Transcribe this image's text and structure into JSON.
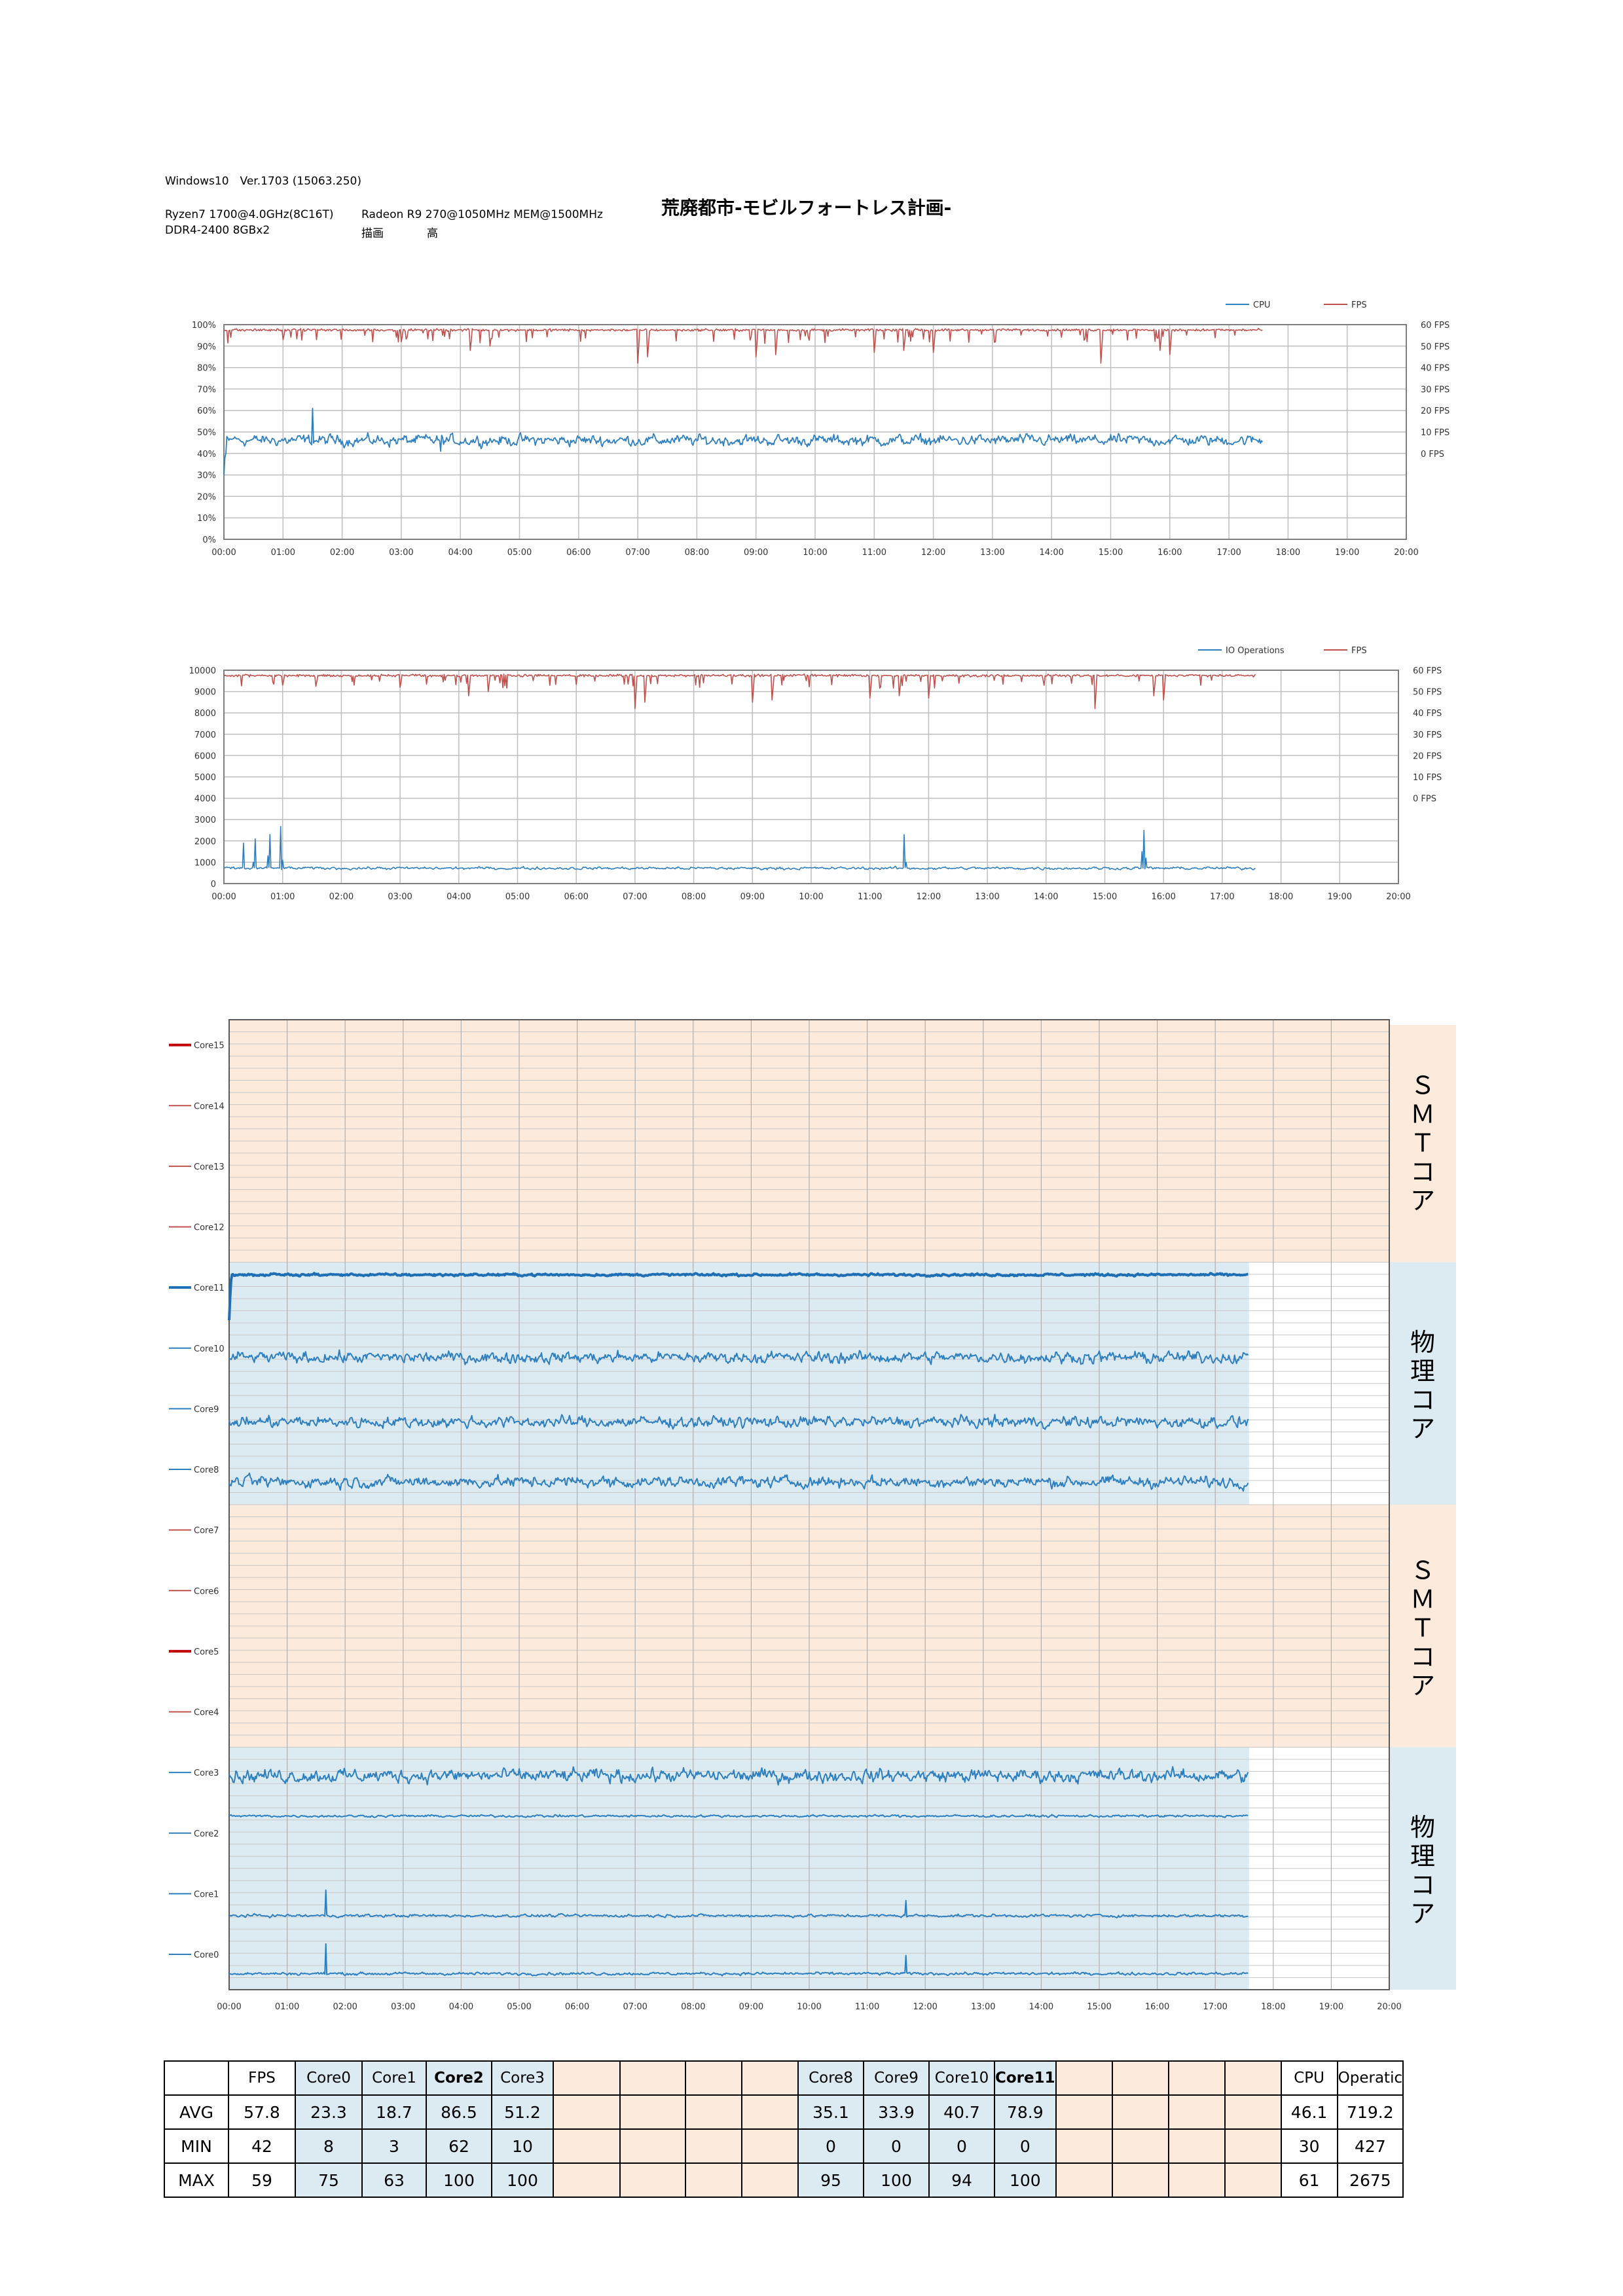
{
  "header": {
    "os": "Windows10　Ver.1703 (15063.250)",
    "cpu": "Ryzen7 1700@4.0GHz(8C16T)",
    "gpu": "Radeon R9 270@1050MHz MEM@1500MHz",
    "mem": "DDR4-2400 8GBx2",
    "quality_label": "描画",
    "quality_value": "高",
    "title": "荒廃都市-モビルフォートレス計画-"
  },
  "colors": {
    "blue": "#2e7fc0",
    "red": "#c0504d",
    "smt_band": "#fcebdd",
    "phys_band": "#dcebf2",
    "grid": "#bfbfbf"
  },
  "time_ticks": [
    "00:00",
    "01:00",
    "02:00",
    "03:00",
    "04:00",
    "05:00",
    "06:00",
    "07:00",
    "08:00",
    "09:00",
    "10:00",
    "11:00",
    "12:00",
    "13:00",
    "14:00",
    "15:00",
    "16:00",
    "17:00",
    "18:00",
    "19:00",
    "20:00"
  ],
  "chart_data": [
    {
      "type": "line",
      "x_range_minutes": [
        0,
        1200
      ],
      "x_ticks": [
        "00:00",
        "01:00",
        "02:00",
        "03:00",
        "04:00",
        "05:00",
        "06:00",
        "07:00",
        "08:00",
        "09:00",
        "10:00",
        "11:00",
        "12:00",
        "13:00",
        "14:00",
        "15:00",
        "16:00",
        "17:00",
        "18:00",
        "19:00",
        "20:00"
      ],
      "y_left_ticks": [
        "0%",
        "10%",
        "20%",
        "30%",
        "40%",
        "50%",
        "60%",
        "70%",
        "80%",
        "90%",
        "100%"
      ],
      "y_right_ticks": [
        "0 FPS",
        "10 FPS",
        "20 FPS",
        "30 FPS",
        "40 FPS",
        "50 FPS",
        "60 FPS"
      ],
      "ylim_left": [
        0,
        100
      ],
      "legend": "top-right",
      "series": [
        {
          "name": "CPU",
          "color": "#2e7fc0",
          "axis": "left",
          "avg": 46.1,
          "min": 30,
          "max": 61,
          "end_minute": 1055
        },
        {
          "name": "FPS",
          "color": "#c0504d",
          "axis": "right",
          "avg": 57.8,
          "min": 42,
          "max": 59,
          "end_minute": 1055
        }
      ]
    },
    {
      "type": "line",
      "x_range_minutes": [
        0,
        1200
      ],
      "x_ticks": [
        "00:00",
        "01:00",
        "02:00",
        "03:00",
        "04:00",
        "05:00",
        "06:00",
        "07:00",
        "08:00",
        "09:00",
        "10:00",
        "11:00",
        "12:00",
        "13:00",
        "14:00",
        "15:00",
        "16:00",
        "17:00",
        "18:00",
        "19:00",
        "20:00"
      ],
      "y_left_ticks": [
        "0",
        "1000",
        "2000",
        "3000",
        "4000",
        "5000",
        "6000",
        "7000",
        "8000",
        "9000",
        "10000"
      ],
      "y_right_ticks": [
        "0 FPS",
        "10 FPS",
        "20 FPS",
        "30 FPS",
        "40 FPS",
        "50 FPS",
        "60 FPS"
      ],
      "ylim_left": [
        0,
        10000
      ],
      "legend": "top-right",
      "series": [
        {
          "name": "IO Operations",
          "color": "#2e7fc0",
          "axis": "left",
          "avg": 719.2,
          "min": 427,
          "max": 2675,
          "end_minute": 1055
        },
        {
          "name": "FPS",
          "color": "#c0504d",
          "axis": "right",
          "avg": 57.8,
          "min": 42,
          "max": 59,
          "end_minute": 1055
        }
      ]
    },
    {
      "type": "line",
      "x_range_minutes": [
        0,
        1200
      ],
      "x_ticks": [
        "00:00",
        "01:00",
        "02:00",
        "03:00",
        "04:00",
        "05:00",
        "06:00",
        "07:00",
        "08:00",
        "09:00",
        "10:00",
        "11:00",
        "12:00",
        "13:00",
        "14:00",
        "15:00",
        "16:00",
        "17:00",
        "18:00",
        "19:00",
        "20:00"
      ],
      "bands": [
        {
          "label": "ＳＭＴコア",
          "kind": "smt",
          "cores": [
            "Core15",
            "Core14",
            "Core13",
            "Core12"
          ]
        },
        {
          "label": "物理コア",
          "kind": "phys",
          "cores": [
            "Core11",
            "Core10",
            "Core9",
            "Core8"
          ]
        },
        {
          "label": "ＳＭＴコア",
          "kind": "smt",
          "cores": [
            "Core7",
            "Core6",
            "Core5",
            "Core4"
          ]
        },
        {
          "label": "物理コア",
          "kind": "phys",
          "cores": [
            "Core3",
            "Core2",
            "Core1",
            "Core0"
          ]
        }
      ],
      "series": [
        {
          "name": "Core15",
          "color": "#c00000",
          "avg": 0,
          "active": false
        },
        {
          "name": "Core14",
          "color": "#c0504d",
          "avg": 0,
          "active": false
        },
        {
          "name": "Core13",
          "color": "#c0504d",
          "avg": 0,
          "active": false
        },
        {
          "name": "Core12",
          "color": "#c0504d",
          "avg": 0,
          "active": false
        },
        {
          "name": "Core11",
          "color": "#1f6fb5",
          "avg": 78.9,
          "min": 0,
          "max": 100,
          "active": true
        },
        {
          "name": "Core10",
          "color": "#2e7fc0",
          "avg": 40.7,
          "min": 0,
          "max": 94,
          "active": true
        },
        {
          "name": "Core9",
          "color": "#2e7fc0",
          "avg": 33.9,
          "min": 0,
          "max": 100,
          "active": true
        },
        {
          "name": "Core8",
          "color": "#2e7fc0",
          "avg": 35.1,
          "min": 0,
          "max": 95,
          "active": true
        },
        {
          "name": "Core7",
          "color": "#c0504d",
          "avg": 0,
          "active": false
        },
        {
          "name": "Core6",
          "color": "#c0504d",
          "avg": 0,
          "active": false
        },
        {
          "name": "Core5",
          "color": "#c00000",
          "avg": 0,
          "active": false
        },
        {
          "name": "Core4",
          "color": "#c0504d",
          "avg": 0,
          "active": false
        },
        {
          "name": "Core3",
          "color": "#2e7fc0",
          "avg": 51.2,
          "min": 10,
          "max": 100,
          "active": true
        },
        {
          "name": "Core2",
          "color": "#2e7fc0",
          "avg": 86.5,
          "min": 62,
          "max": 100,
          "active": true
        },
        {
          "name": "Core1",
          "color": "#2e7fc0",
          "avg": 18.7,
          "min": 3,
          "max": 63,
          "active": true
        },
        {
          "name": "Core0",
          "color": "#2e7fc0",
          "avg": 23.3,
          "min": 8,
          "max": 75,
          "active": true
        }
      ]
    }
  ],
  "stats_table": {
    "headers": [
      "",
      "FPS",
      "Core0",
      "Core1",
      "Core2",
      "Core3",
      "",
      "",
      "",
      "",
      "Core8",
      "Core9",
      "Core10",
      "Core11",
      "",
      "",
      "",
      "",
      "CPU",
      "Operatic"
    ],
    "bold_headers": [
      "Core2",
      "Core11"
    ],
    "rows": [
      {
        "label": "AVG",
        "values": [
          "57.8",
          "23.3",
          "18.7",
          "86.5",
          "51.2",
          "",
          "",
          "",
          "",
          "35.1",
          "33.9",
          "40.7",
          "78.9",
          "",
          "",
          "",
          "",
          "46.1",
          "719.2"
        ]
      },
      {
        "label": "MIN",
        "values": [
          "42",
          "8",
          "3",
          "62",
          "10",
          "",
          "",
          "",
          "",
          "0",
          "0",
          "0",
          "0",
          "",
          "",
          "",
          "",
          "30",
          "427"
        ]
      },
      {
        "label": "MAX",
        "values": [
          "59",
          "75",
          "63",
          "100",
          "100",
          "",
          "",
          "",
          "",
          "95",
          "100",
          "94",
          "100",
          "",
          "",
          "",
          "",
          "61",
          "2675"
        ]
      }
    ]
  }
}
